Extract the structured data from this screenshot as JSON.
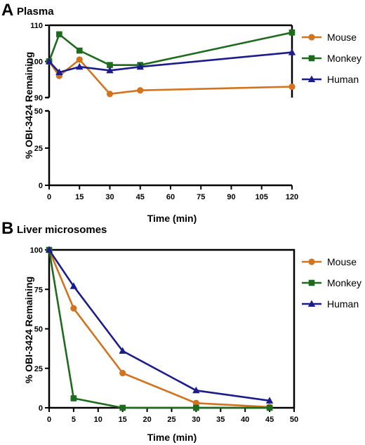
{
  "chart_data": [
    {
      "type": "line",
      "panel": "A",
      "title": "Plasma",
      "xlabel": "Time (min)",
      "ylabel": "% OBI-3424 Remaining",
      "x_ticks": [
        "0",
        "15",
        "30",
        "45",
        "60",
        "75",
        "90",
        "105",
        "120"
      ],
      "xlim": [
        0,
        120
      ],
      "y_axis_broken": true,
      "y_ticks_upper": [
        "90",
        "100",
        "110"
      ],
      "y_ticks_lower": [
        "0",
        "25",
        "50"
      ],
      "ylim_upper": [
        90,
        110
      ],
      "ylim_lower": [
        0,
        50
      ],
      "legend_position": "right",
      "grid": false,
      "series": [
        {
          "name": "Mouse",
          "color": "#D2731F",
          "marker": "circle",
          "x": [
            0,
            5,
            15,
            30,
            45,
            120
          ],
          "y": [
            100,
            96,
            100.5,
            91,
            92,
            93
          ]
        },
        {
          "name": "Monkey",
          "color": "#1E6B1E",
          "marker": "square",
          "x": [
            0,
            5,
            15,
            30,
            45,
            120
          ],
          "y": [
            100,
            107.5,
            103,
            99,
            99,
            108
          ]
        },
        {
          "name": "Human",
          "color": "#1C1C8C",
          "marker": "triangle",
          "x": [
            0,
            5,
            15,
            30,
            45,
            120
          ],
          "y": [
            100,
            97,
            98.5,
            97.5,
            98.5,
            102.5
          ]
        }
      ]
    },
    {
      "type": "line",
      "panel": "B",
      "title": "Liver microsomes",
      "xlabel": "Time (min)",
      "ylabel": "% OBI-3424 Remaining",
      "x_ticks": [
        "0",
        "5",
        "10",
        "15",
        "20",
        "25",
        "30",
        "35",
        "40",
        "45",
        "50"
      ],
      "xlim": [
        0,
        50
      ],
      "y_ticks": [
        "0",
        "25",
        "50",
        "75",
        "100"
      ],
      "ylim": [
        0,
        100
      ],
      "legend_position": "right",
      "grid": false,
      "series": [
        {
          "name": "Mouse",
          "color": "#D2731F",
          "marker": "circle",
          "x": [
            0,
            5,
            15,
            30,
            45
          ],
          "y": [
            100,
            63,
            22,
            3,
            0.5
          ]
        },
        {
          "name": "Monkey",
          "color": "#1E6B1E",
          "marker": "square",
          "x": [
            0,
            5,
            15,
            30,
            45
          ],
          "y": [
            100,
            6,
            0,
            0,
            0
          ]
        },
        {
          "name": "Human",
          "color": "#1C1C8C",
          "marker": "triangle",
          "x": [
            0,
            5,
            15,
            30,
            45
          ],
          "y": [
            100,
            77,
            36,
            11,
            4.5
          ]
        }
      ]
    }
  ]
}
